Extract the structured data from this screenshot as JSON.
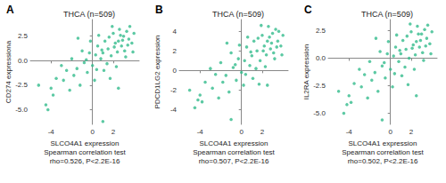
{
  "chart_data": [
    {
      "type": "scatter",
      "annotations": [
        "A"
      ],
      "title": "THCA (n=509)",
      "x_label": "SLCO4A1 expression\nSpearman correlation test\nrho=0.526, P<2.2E-16",
      "y_label": "CD274 expressiona",
      "color": "#33bb8c",
      "grid": false,
      "xlim": [
        -6,
        4.5
      ],
      "xticks": [
        -4,
        0,
        2
      ],
      "ylim": [
        -6.5,
        4.2
      ],
      "yticks": [
        {
          "value": -5,
          "label": "-5.0"
        },
        {
          "value": -2.5,
          "label": "-2.5"
        },
        {
          "value": 0,
          "label": "0.0"
        },
        {
          "value": 2.5,
          "label": "2.5"
        }
      ],
      "x": [
        2.5,
        3.0,
        1.5,
        2.2,
        3.3,
        2.8,
        1.0,
        0.5,
        3.5,
        2.0,
        1.8,
        2.6,
        3.1,
        1.2,
        0.8,
        2.4,
        3.6,
        1.6,
        2.9,
        0.3,
        3.8,
        2.1,
        1.4,
        0.9,
        2.7,
        3.4,
        0.0,
        -0.3,
        -0.8,
        -1.0,
        -1.5,
        -0.5,
        1.1,
        2.3,
        3.2,
        -2.0,
        -1.8,
        -2.5,
        -3.0,
        -2.8,
        -3.5,
        -1.2,
        0.2,
        1.7,
        -4.0,
        -4.5,
        -4.3,
        -5.2,
        -3.8,
        -2.2,
        0.6,
        -0.2,
        1.9,
        4.0,
        2.5,
        1.0,
        -0.6,
        0.4,
        3.9,
        -1.4
      ],
      "values": [
        2.0,
        2.5,
        1.2,
        1.8,
        3.0,
        1.5,
        0.8,
        1.5,
        2.2,
        2.8,
        0.5,
        3.2,
        1.0,
        2.0,
        0.2,
        0.9,
        3.5,
        2.4,
        2.1,
        0.6,
        1.8,
        1.4,
        -0.3,
        1.1,
        2.6,
        1.6,
        -0.5,
        0.8,
        -0.2,
        1.0,
        -0.8,
        -1.2,
        -1.0,
        -0.6,
        0.4,
        0.2,
        -1.5,
        -1.0,
        -0.5,
        -2.0,
        -1.8,
        -2.5,
        -2.0,
        -1.8,
        -2.8,
        -4.5,
        -5.0,
        -2.5,
        -3.5,
        -3.0,
        2.6,
        2.0,
        3.5,
        2.8,
        -2.8,
        -6.2,
        0.1,
        -0.9,
        0.9,
        2.3
      ]
    },
    {
      "type": "scatter",
      "annotations": [
        "B"
      ],
      "title": "THCA (n=509)",
      "x_label": "SLCO4A1 expression\nSpearman correlation test\nrho=0.507, P<2.2E-16",
      "y_label": "PDCD1LG2 expression",
      "color": "#33bb8c",
      "grid": false,
      "xlim": [
        -6,
        4.5
      ],
      "xticks": [
        -4,
        0,
        2
      ],
      "ylim": [
        -5.5,
        5.2
      ],
      "yticks": [
        -4,
        -2,
        0,
        2,
        4
      ],
      "x": [
        2.5,
        3.0,
        1.5,
        2.2,
        3.3,
        2.8,
        1.0,
        0.5,
        3.5,
        2.0,
        1.8,
        2.6,
        3.1,
        1.2,
        0.8,
        2.4,
        3.6,
        1.6,
        2.9,
        0.3,
        3.8,
        2.1,
        1.4,
        0.9,
        2.7,
        3.4,
        0.0,
        -0.3,
        -0.8,
        -1.0,
        -1.5,
        -0.5,
        1.1,
        2.3,
        3.2,
        -2.0,
        -1.8,
        -2.5,
        -3.0,
        -2.8,
        -3.5,
        -1.2,
        0.2,
        1.7,
        -4.0,
        -4.5,
        -4.2,
        -5.0,
        -3.8,
        -2.2,
        0.6,
        -0.2,
        1.9,
        4.0,
        2.5,
        -1.0,
        -0.6,
        0.4,
        3.9,
        -1.4
      ],
      "values": [
        3.0,
        3.8,
        2.0,
        2.5,
        4.2,
        2.2,
        1.5,
        2.4,
        3.0,
        3.6,
        1.0,
        4.5,
        1.8,
        3.0,
        0.5,
        1.6,
        4.0,
        3.3,
        2.8,
        1.0,
        2.5,
        2.0,
        0.2,
        1.9,
        3.4,
        2.4,
        -0.2,
        1.2,
        0.3,
        1.8,
        -0.5,
        -1.0,
        -0.8,
        0.4,
        1.2,
        0.8,
        -1.2,
        -0.4,
        0.2,
        -1.8,
        -1.2,
        -2.2,
        -1.5,
        -1.4,
        -2.5,
        -3.8,
        -3.0,
        -2.0,
        -3.2,
        -2.8,
        3.4,
        2.6,
        4.6,
        3.6,
        -1.5,
        -5.0,
        0.6,
        -0.4,
        1.6,
        2.8
      ]
    },
    {
      "type": "scatter",
      "annotations": [
        "C"
      ],
      "title": "THCA (n=509)",
      "x_label": "SLCO4A1 expression\nSpearman correlation test\nrho=0.502, P<2.2E-16",
      "y_label": "IL2RA expression",
      "color": "#33bb8c",
      "grid": false,
      "xlim": [
        -6,
        4.5
      ],
      "xticks": [
        -4,
        0,
        2
      ],
      "ylim": [
        -6,
        3.5
      ],
      "yticks": [
        {
          "value": -5,
          "label": "-5.0"
        },
        {
          "value": -2.5,
          "label": "-2.5"
        },
        {
          "value": 0,
          "label": "0.0"
        },
        {
          "value": 2.5,
          "label": "2.5"
        }
      ],
      "x": [
        2.5,
        3.0,
        1.5,
        2.2,
        3.3,
        2.8,
        1.0,
        0.5,
        3.5,
        2.0,
        1.8,
        2.6,
        3.1,
        1.2,
        0.8,
        2.4,
        3.6,
        1.6,
        2.9,
        0.3,
        3.8,
        2.1,
        1.4,
        0.9,
        2.7,
        3.4,
        0.0,
        -0.3,
        -0.8,
        -1.0,
        -1.5,
        -0.5,
        1.1,
        2.3,
        3.2,
        -2.0,
        -1.8,
        -2.5,
        -3.0,
        -2.8,
        -3.5,
        -1.2,
        0.2,
        1.7,
        -4.0,
        -4.5,
        -4.2,
        -5.0,
        -3.8,
        -2.2,
        0.6,
        -0.2,
        1.9,
        4.0,
        2.5,
        -0.8,
        -0.6,
        0.4,
        3.9,
        -1.4
      ],
      "values": [
        1.5,
        2.2,
        0.8,
        1.2,
        2.6,
        1.0,
        0.4,
        1.0,
        1.8,
        2.4,
        0.0,
        2.9,
        0.5,
        1.6,
        -0.3,
        0.3,
        3.0,
        2.0,
        1.6,
        0.2,
        1.3,
        0.9,
        -0.8,
        0.7,
        2.2,
        1.1,
        -1.0,
        0.4,
        -0.7,
        0.6,
        -1.3,
        -1.8,
        -1.6,
        -1.0,
        -0.2,
        -0.3,
        -2.0,
        -1.5,
        -1.0,
        -2.6,
        -2.3,
        -3.0,
        -2.6,
        -2.4,
        -3.4,
        -5.0,
        -4.2,
        -3.0,
        -4.0,
        -3.6,
        2.1,
        1.5,
        3.1,
        2.4,
        -3.4,
        -5.6,
        -0.4,
        -1.4,
        0.4,
        1.8
      ]
    }
  ]
}
